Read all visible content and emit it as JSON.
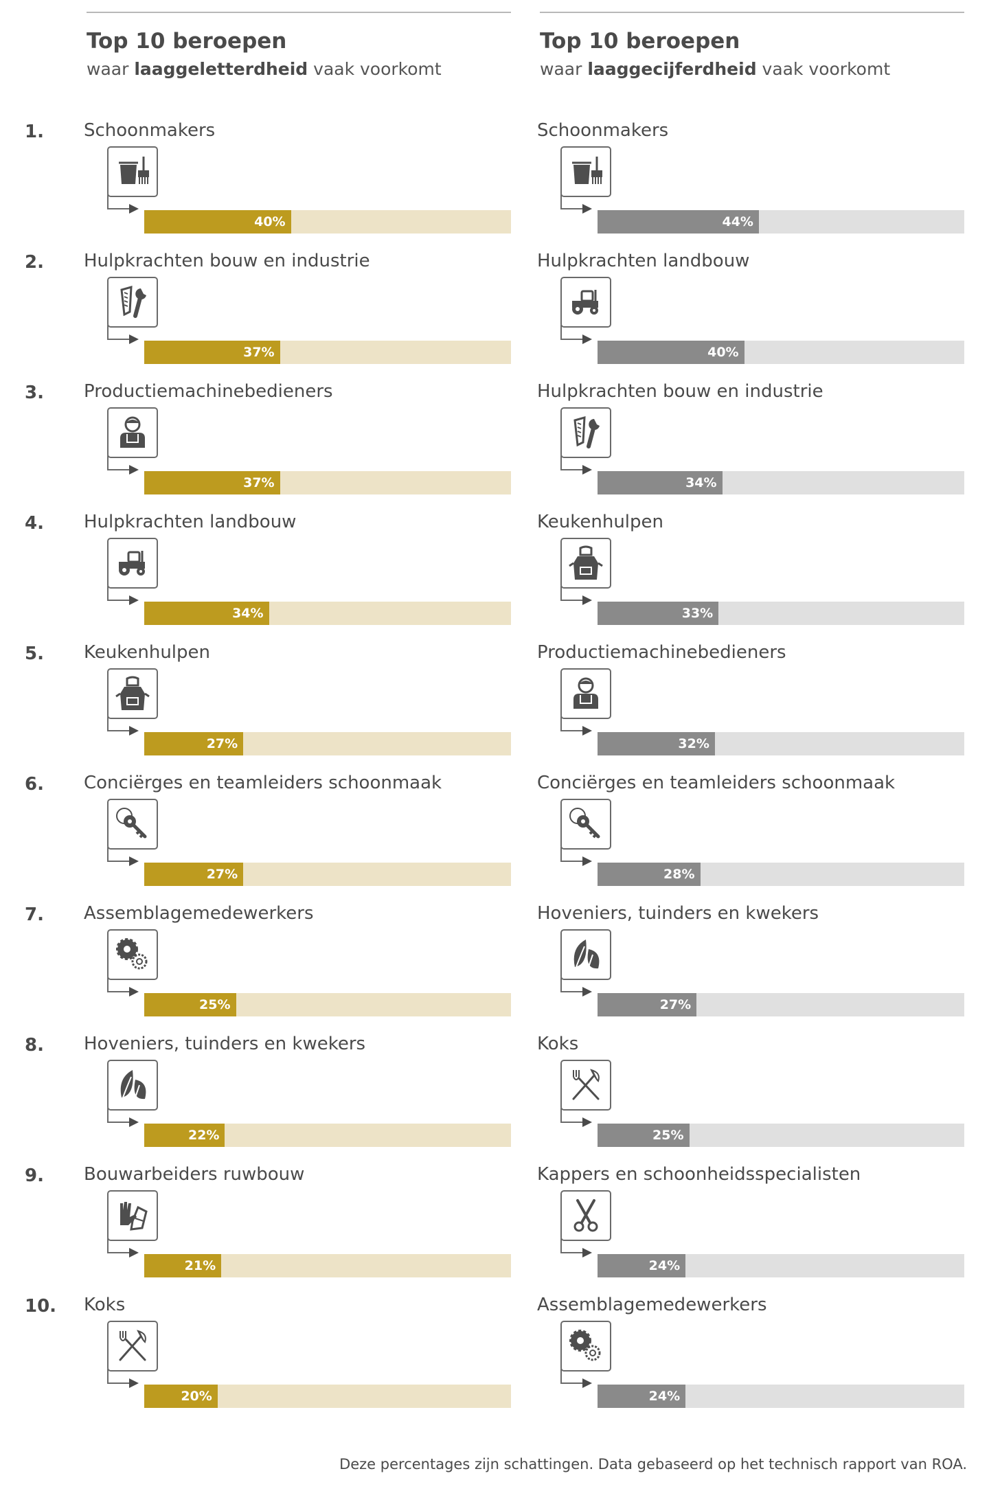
{
  "colors": {
    "left_fill": "#bd9b1f",
    "left_track": "#ede3c7",
    "right_fill": "#8a8a8a",
    "right_track": "#e0e0e0",
    "icon": "#4e4e4e"
  },
  "ranks": [
    "1.",
    "2.",
    "3.",
    "4.",
    "5.",
    "6.",
    "7.",
    "8.",
    "9.",
    "10."
  ],
  "left": {
    "title": "Top 10 beroepen",
    "subtitle_pre": "waar ",
    "subtitle_bold": "laaggeletterdheid",
    "subtitle_post": " vaak voorkomt"
  },
  "right": {
    "title": "Top 10 beroepen",
    "subtitle_pre": "waar ",
    "subtitle_bold": "laaggecijferdheid",
    "subtitle_post": " vaak voorkomt"
  },
  "footnote": "Deze percentages zijn schattingen. Data gebaseerd op het technisch rapport van ROA.",
  "chart_data": [
    {
      "type": "bar",
      "title": "Top 10 beroepen waar laaggeletterdheid vaak voorkomt",
      "xlim": [
        0,
        100
      ],
      "categories": [
        "Schoonmakers",
        "Hulpkrachten bouw en industrie",
        "Productiemachinebedieners",
        "Hulpkrachten landbouw",
        "Keukenhulpen",
        "Conciërges en teamleiders schoonmaak",
        "Assemblagemedewerkers",
        "Hoveniers, tuinders en kwekers",
        "Bouwarbeiders ruwbouw",
        "Koks"
      ],
      "values": [
        40,
        37,
        37,
        34,
        27,
        27,
        25,
        22,
        21,
        20
      ],
      "labels": [
        "40%",
        "37%",
        "37%",
        "34%",
        "27%",
        "27%",
        "25%",
        "22%",
        "21%",
        "20%"
      ],
      "icons": [
        "bucket-broom-icon",
        "saw-wrench-icon",
        "worker-icon",
        "tractor-icon",
        "apron-icon",
        "key-icon",
        "gears-icon",
        "leaf-icon",
        "gloves-icon",
        "fork-whisk-icon"
      ]
    },
    {
      "type": "bar",
      "title": "Top 10 beroepen waar laaggecijferdheid vaak voorkomt",
      "xlim": [
        0,
        100
      ],
      "categories": [
        "Schoonmakers",
        "Hulpkrachten landbouw",
        "Hulpkrachten bouw en industrie",
        "Keukenhulpen",
        "Productiemachinebedieners",
        "Conciërges en teamleiders schoonmaak",
        "Hoveniers, tuinders en kwekers",
        "Koks",
        "Kappers en schoonheidsspecialisten",
        "Assemblagemedewerkers"
      ],
      "values": [
        44,
        40,
        34,
        33,
        32,
        28,
        27,
        25,
        24,
        24
      ],
      "labels": [
        "44%",
        "40%",
        "34%",
        "33%",
        "32%",
        "28%",
        "27%",
        "25%",
        "24%",
        "24%"
      ],
      "icons": [
        "bucket-broom-icon",
        "tractor-icon",
        "saw-wrench-icon",
        "apron-icon",
        "worker-icon",
        "key-icon",
        "leaf-icon",
        "fork-whisk-icon",
        "scissors-icon",
        "gears-icon"
      ]
    }
  ]
}
